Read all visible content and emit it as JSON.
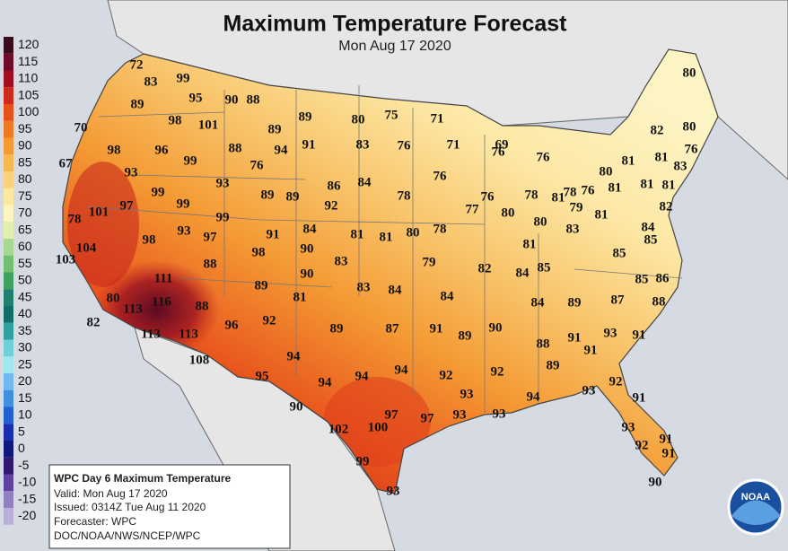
{
  "title": "Maximum Temperature Forecast",
  "subtitle": "Mon Aug 17 2020",
  "legend": [
    {
      "label": 120,
      "color": "#3a0b1a"
    },
    {
      "label": 115,
      "color": "#6e0a2a"
    },
    {
      "label": 110,
      "color": "#a01020"
    },
    {
      "label": 105,
      "color": "#d02a1a"
    },
    {
      "label": 100,
      "color": "#e8501a"
    },
    {
      "label": 95,
      "color": "#f07820"
    },
    {
      "label": 90,
      "color": "#f59a30"
    },
    {
      "label": 85,
      "color": "#f8b850"
    },
    {
      "label": 80,
      "color": "#fbd27a"
    },
    {
      "label": 75,
      "color": "#fde8a0"
    },
    {
      "label": 70,
      "color": "#fdf5c0"
    },
    {
      "label": 65,
      "color": "#e0f0b0"
    },
    {
      "label": 60,
      "color": "#a8d890"
    },
    {
      "label": 55,
      "color": "#70c070"
    },
    {
      "label": 50,
      "color": "#40a060"
    },
    {
      "label": 45,
      "color": "#208070"
    },
    {
      "label": 40,
      "color": "#107068"
    },
    {
      "label": 35,
      "color": "#30a0a0"
    },
    {
      "label": 30,
      "color": "#70d0d8"
    },
    {
      "label": 25,
      "color": "#a0e8f0"
    },
    {
      "label": 20,
      "color": "#70b8f0"
    },
    {
      "label": 15,
      "color": "#4090e0"
    },
    {
      "label": 10,
      "color": "#2060d0"
    },
    {
      "label": 5,
      "color": "#1830b0"
    },
    {
      "label": 0,
      "color": "#101880"
    },
    {
      "label": -5,
      "color": "#301870"
    },
    {
      "label": -10,
      "color": "#6040a0"
    },
    {
      "label": -15,
      "color": "#9080c0"
    },
    {
      "label": -20,
      "color": "#b8b0d8"
    }
  ],
  "info": {
    "heading": "WPC Day 6 Maximum Temperature",
    "valid": "Valid: Mon Aug 17 2020",
    "issued": "Issued: 0314Z Tue Aug 11 2020",
    "forecaster": "Forecaster: WPC",
    "source": "DOC/NOAA/NWS/NCEP/WPC"
  },
  "logo": "NOAA",
  "temps": [
    72,
    83,
    99,
    90,
    88,
    89,
    95,
    98,
    101,
    70,
    98,
    96,
    99,
    88,
    89,
    89,
    94,
    91,
    76,
    67,
    93,
    93,
    89,
    89,
    86,
    84,
    92,
    99,
    99,
    97,
    78,
    101,
    99,
    93,
    97,
    91,
    84,
    90,
    81,
    81,
    80,
    78,
    98,
    104,
    103,
    98,
    88,
    90,
    83,
    79,
    82,
    111,
    116,
    89,
    81,
    83,
    84,
    84,
    80,
    113,
    82,
    88,
    96,
    92,
    89,
    87,
    91,
    89,
    90,
    113,
    113,
    108,
    94,
    95,
    94,
    94,
    94,
    92,
    92,
    93,
    90,
    102,
    100,
    97,
    97,
    93,
    93,
    99,
    93,
    80,
    75,
    71,
    83,
    76,
    71,
    69,
    76,
    76,
    78,
    76,
    77,
    76,
    80,
    78,
    81,
    78,
    76,
    81,
    79,
    81,
    80,
    83,
    81,
    85,
    84,
    85,
    85,
    86,
    84,
    89,
    87,
    88,
    88,
    91,
    91,
    93,
    91,
    89,
    94,
    93,
    92,
    91,
    93,
    92,
    91,
    91,
    90,
    80,
    82,
    80,
    81,
    81,
    76,
    83,
    80,
    81,
    81,
    82,
    84,
    85
  ]
}
